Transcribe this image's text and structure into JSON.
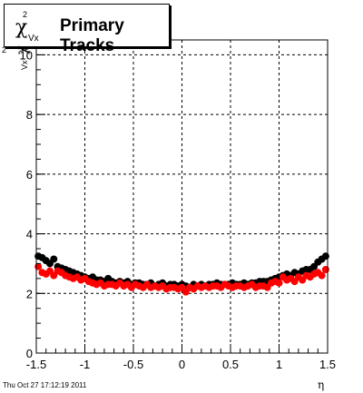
{
  "title": {
    "symbol": "χ",
    "superscript": "2",
    "subscript": "Vx",
    "text": "Primary Tracks"
  },
  "timestamp": "Thu Oct 27 17:12:19 2011",
  "chart_data": {
    "type": "scatter",
    "title": "Primary Tracks",
    "xlabel": "η",
    "ylabel": "χ²Vx",
    "xlim": [
      -1.5,
      1.5
    ],
    "ylim": [
      0,
      10.5
    ],
    "xticks": [
      "-1.5",
      "-1",
      "-0.5",
      "0",
      "0.5",
      "1",
      "1.5"
    ],
    "yticks": [
      "0",
      "2",
      "4",
      "6",
      "8",
      "10"
    ],
    "grid": true,
    "series": [
      {
        "color": "#000000",
        "x": [
          -1.48,
          -1.44,
          -1.4,
          -1.36,
          -1.32,
          -1.28,
          -1.24,
          -1.2,
          -1.16,
          -1.12,
          -1.08,
          -1.04,
          -1.0,
          -0.96,
          -0.92,
          -0.88,
          -0.84,
          -0.8,
          -0.76,
          -0.72,
          -0.68,
          -0.64,
          -0.6,
          -0.56,
          -0.52,
          -0.48,
          -0.44,
          -0.4,
          -0.36,
          -0.32,
          -0.28,
          -0.24,
          -0.2,
          -0.16,
          -0.12,
          -0.08,
          -0.04,
          0.0,
          0.04,
          0.08,
          0.12,
          0.16,
          0.2,
          0.24,
          0.28,
          0.32,
          0.36,
          0.4,
          0.44,
          0.48,
          0.52,
          0.56,
          0.6,
          0.64,
          0.68,
          0.72,
          0.76,
          0.8,
          0.84,
          0.88,
          0.92,
          0.96,
          1.0,
          1.04,
          1.08,
          1.12,
          1.16,
          1.2,
          1.24,
          1.28,
          1.32,
          1.36,
          1.4,
          1.44,
          1.48
        ],
        "y": [
          3.25,
          3.2,
          3.1,
          3.0,
          3.15,
          2.9,
          2.85,
          2.8,
          2.75,
          2.7,
          2.65,
          2.6,
          2.55,
          2.5,
          2.55,
          2.45,
          2.45,
          2.4,
          2.5,
          2.4,
          2.35,
          2.4,
          2.35,
          2.4,
          2.3,
          2.35,
          2.35,
          2.3,
          2.3,
          2.35,
          2.25,
          2.3,
          2.35,
          2.25,
          2.3,
          2.3,
          2.25,
          2.3,
          2.25,
          2.2,
          2.3,
          2.25,
          2.3,
          2.25,
          2.3,
          2.3,
          2.35,
          2.3,
          2.3,
          2.3,
          2.35,
          2.3,
          2.3,
          2.35,
          2.3,
          2.35,
          2.35,
          2.4,
          2.4,
          2.4,
          2.45,
          2.5,
          2.55,
          2.6,
          2.65,
          2.6,
          2.7,
          2.65,
          2.75,
          2.8,
          2.8,
          2.9,
          3.05,
          3.15,
          3.25
        ]
      },
      {
        "color": "#ff0000",
        "x": [
          -1.48,
          -1.44,
          -1.4,
          -1.36,
          -1.32,
          -1.28,
          -1.24,
          -1.2,
          -1.16,
          -1.12,
          -1.08,
          -1.04,
          -1.0,
          -0.96,
          -0.92,
          -0.88,
          -0.84,
          -0.8,
          -0.76,
          -0.72,
          -0.68,
          -0.64,
          -0.6,
          -0.56,
          -0.52,
          -0.48,
          -0.44,
          -0.4,
          -0.36,
          -0.32,
          -0.28,
          -0.24,
          -0.2,
          -0.16,
          -0.12,
          -0.08,
          -0.04,
          0.0,
          0.04,
          0.08,
          0.12,
          0.16,
          0.2,
          0.24,
          0.28,
          0.32,
          0.36,
          0.4,
          0.44,
          0.48,
          0.52,
          0.56,
          0.6,
          0.64,
          0.68,
          0.72,
          0.76,
          0.8,
          0.84,
          0.88,
          0.92,
          0.96,
          1.0,
          1.04,
          1.08,
          1.12,
          1.16,
          1.2,
          1.24,
          1.28,
          1.32,
          1.36,
          1.4,
          1.44,
          1.48
        ],
        "y": [
          2.9,
          2.7,
          2.65,
          2.75,
          2.6,
          2.75,
          2.7,
          2.6,
          2.55,
          2.5,
          2.55,
          2.45,
          2.5,
          2.4,
          2.35,
          2.3,
          2.35,
          2.25,
          2.3,
          2.3,
          2.25,
          2.35,
          2.25,
          2.3,
          2.2,
          2.3,
          2.25,
          2.2,
          2.3,
          2.2,
          2.25,
          2.2,
          2.25,
          2.15,
          2.2,
          2.2,
          2.15,
          2.2,
          2.05,
          2.2,
          2.15,
          2.25,
          2.2,
          2.25,
          2.2,
          2.25,
          2.25,
          2.2,
          2.3,
          2.25,
          2.2,
          2.25,
          2.25,
          2.2,
          2.25,
          2.3,
          2.2,
          2.25,
          2.25,
          2.2,
          2.35,
          2.4,
          2.35,
          2.55,
          2.45,
          2.5,
          2.4,
          2.55,
          2.45,
          2.6,
          2.55,
          2.65,
          2.7,
          2.6,
          2.8
        ]
      }
    ]
  }
}
